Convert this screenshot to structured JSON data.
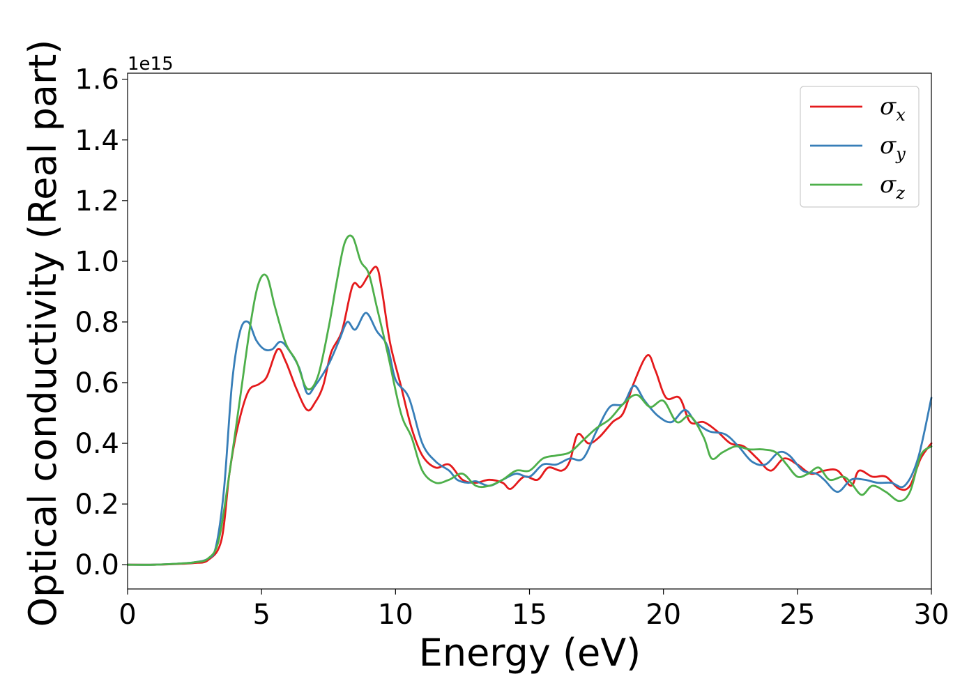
{
  "chart_data": {
    "type": "line",
    "xlabel": "Energy (eV)",
    "ylabel": "Optical conductivity (Real part)",
    "y_offset_label": "1e15",
    "xlim": [
      0,
      30
    ],
    "ylim": [
      -0.08,
      1.62
    ],
    "x_ticks": [
      0,
      5,
      10,
      15,
      20,
      25,
      30
    ],
    "x_tick_labels": [
      "0",
      "5",
      "10",
      "15",
      "20",
      "25",
      "30"
    ],
    "y_ticks": [
      0.0,
      0.2,
      0.4,
      0.6,
      0.8,
      1.0,
      1.2,
      1.4,
      1.6
    ],
    "y_tick_labels": [
      "0.0",
      "0.2",
      "0.4",
      "0.6",
      "0.8",
      "1.0",
      "1.2",
      "1.4",
      "1.6"
    ],
    "grid": false,
    "legend_position": "top-right",
    "series": [
      {
        "name": "σx",
        "legend_symbol": "σ",
        "legend_subscript": "x",
        "color": "#e41a1c",
        "points": [
          [
            0,
            0
          ],
          [
            1,
            0
          ],
          [
            2,
            0.003
          ],
          [
            2.5,
            0.006
          ],
          [
            3,
            0.015
          ],
          [
            3.5,
            0.08
          ],
          [
            3.8,
            0.3
          ],
          [
            4.1,
            0.45
          ],
          [
            4.5,
            0.57
          ],
          [
            4.9,
            0.595
          ],
          [
            5.2,
            0.62
          ],
          [
            5.6,
            0.71
          ],
          [
            5.9,
            0.67
          ],
          [
            6.3,
            0.58
          ],
          [
            6.7,
            0.51
          ],
          [
            7.0,
            0.535
          ],
          [
            7.3,
            0.59
          ],
          [
            7.6,
            0.7
          ],
          [
            8.0,
            0.77
          ],
          [
            8.4,
            0.92
          ],
          [
            8.7,
            0.915
          ],
          [
            9.0,
            0.955
          ],
          [
            9.3,
            0.98
          ],
          [
            9.5,
            0.9
          ],
          [
            9.8,
            0.73
          ],
          [
            10.2,
            0.59
          ],
          [
            10.6,
            0.45
          ],
          [
            11.0,
            0.36
          ],
          [
            11.5,
            0.32
          ],
          [
            12.0,
            0.33
          ],
          [
            12.5,
            0.28
          ],
          [
            13.0,
            0.27
          ],
          [
            13.5,
            0.28
          ],
          [
            14.0,
            0.27
          ],
          [
            14.3,
            0.25
          ],
          [
            14.8,
            0.29
          ],
          [
            15.3,
            0.28
          ],
          [
            15.7,
            0.32
          ],
          [
            16.2,
            0.31
          ],
          [
            16.5,
            0.34
          ],
          [
            16.8,
            0.43
          ],
          [
            17.2,
            0.4
          ],
          [
            17.6,
            0.42
          ],
          [
            18.1,
            0.47
          ],
          [
            18.5,
            0.5
          ],
          [
            18.9,
            0.6
          ],
          [
            19.4,
            0.69
          ],
          [
            19.7,
            0.64
          ],
          [
            20.1,
            0.55
          ],
          [
            20.6,
            0.55
          ],
          [
            21.0,
            0.47
          ],
          [
            21.5,
            0.47
          ],
          [
            22.0,
            0.44
          ],
          [
            22.5,
            0.4
          ],
          [
            23.0,
            0.39
          ],
          [
            23.5,
            0.35
          ],
          [
            24.0,
            0.31
          ],
          [
            24.5,
            0.35
          ],
          [
            25.0,
            0.33
          ],
          [
            25.5,
            0.3
          ],
          [
            26.0,
            0.31
          ],
          [
            26.5,
            0.31
          ],
          [
            27.0,
            0.26
          ],
          [
            27.3,
            0.31
          ],
          [
            27.8,
            0.29
          ],
          [
            28.3,
            0.29
          ],
          [
            28.8,
            0.25
          ],
          [
            29.2,
            0.26
          ],
          [
            29.6,
            0.35
          ],
          [
            30.0,
            0.4
          ]
        ]
      },
      {
        "name": "σy",
        "legend_symbol": "σ",
        "legend_subscript": "y",
        "color": "#377eb8",
        "points": [
          [
            0,
            0
          ],
          [
            1,
            0
          ],
          [
            2,
            0.004
          ],
          [
            2.5,
            0.008
          ],
          [
            3,
            0.02
          ],
          [
            3.3,
            0.06
          ],
          [
            3.6,
            0.25
          ],
          [
            3.9,
            0.6
          ],
          [
            4.2,
            0.77
          ],
          [
            4.5,
            0.8
          ],
          [
            4.8,
            0.74
          ],
          [
            5.1,
            0.71
          ],
          [
            5.4,
            0.71
          ],
          [
            5.7,
            0.735
          ],
          [
            6.0,
            0.71
          ],
          [
            6.4,
            0.65
          ],
          [
            6.7,
            0.565
          ],
          [
            7.0,
            0.59
          ],
          [
            7.5,
            0.66
          ],
          [
            7.9,
            0.74
          ],
          [
            8.2,
            0.8
          ],
          [
            8.5,
            0.775
          ],
          [
            8.9,
            0.83
          ],
          [
            9.3,
            0.77
          ],
          [
            9.7,
            0.72
          ],
          [
            10.0,
            0.61
          ],
          [
            10.5,
            0.55
          ],
          [
            11.0,
            0.4
          ],
          [
            11.5,
            0.34
          ],
          [
            12.0,
            0.31
          ],
          [
            12.3,
            0.28
          ],
          [
            12.7,
            0.27
          ],
          [
            13.0,
            0.275
          ],
          [
            13.5,
            0.26
          ],
          [
            14.0,
            0.28
          ],
          [
            14.5,
            0.3
          ],
          [
            15.0,
            0.29
          ],
          [
            15.5,
            0.33
          ],
          [
            16.0,
            0.33
          ],
          [
            16.5,
            0.35
          ],
          [
            17.0,
            0.35
          ],
          [
            17.5,
            0.44
          ],
          [
            18.0,
            0.52
          ],
          [
            18.5,
            0.53
          ],
          [
            18.9,
            0.59
          ],
          [
            19.3,
            0.54
          ],
          [
            19.8,
            0.49
          ],
          [
            20.3,
            0.47
          ],
          [
            20.8,
            0.51
          ],
          [
            21.2,
            0.47
          ],
          [
            21.7,
            0.44
          ],
          [
            22.3,
            0.43
          ],
          [
            22.8,
            0.39
          ],
          [
            23.3,
            0.34
          ],
          [
            23.8,
            0.33
          ],
          [
            24.3,
            0.37
          ],
          [
            24.7,
            0.36
          ],
          [
            25.2,
            0.31
          ],
          [
            25.7,
            0.3
          ],
          [
            26.0,
            0.28
          ],
          [
            26.5,
            0.24
          ],
          [
            27.0,
            0.28
          ],
          [
            27.5,
            0.28
          ],
          [
            28.0,
            0.27
          ],
          [
            28.5,
            0.27
          ],
          [
            29.0,
            0.26
          ],
          [
            29.5,
            0.35
          ],
          [
            30.0,
            0.55
          ]
        ]
      },
      {
        "name": "σz",
        "legend_symbol": "σ",
        "legend_subscript": "z",
        "color": "#4daf4a",
        "points": [
          [
            0,
            0
          ],
          [
            1,
            0
          ],
          [
            2,
            0.004
          ],
          [
            2.5,
            0.008
          ],
          [
            3,
            0.02
          ],
          [
            3.4,
            0.08
          ],
          [
            3.8,
            0.3
          ],
          [
            4.2,
            0.55
          ],
          [
            4.6,
            0.8
          ],
          [
            4.9,
            0.93
          ],
          [
            5.2,
            0.95
          ],
          [
            5.5,
            0.85
          ],
          [
            5.9,
            0.73
          ],
          [
            6.3,
            0.67
          ],
          [
            6.7,
            0.58
          ],
          [
            7.1,
            0.62
          ],
          [
            7.5,
            0.78
          ],
          [
            7.8,
            0.93
          ],
          [
            8.1,
            1.06
          ],
          [
            8.4,
            1.08
          ],
          [
            8.7,
            1.0
          ],
          [
            9.0,
            0.96
          ],
          [
            9.3,
            0.85
          ],
          [
            9.7,
            0.7
          ],
          [
            10.2,
            0.5
          ],
          [
            10.6,
            0.42
          ],
          [
            11.0,
            0.31
          ],
          [
            11.5,
            0.27
          ],
          [
            12.0,
            0.28
          ],
          [
            12.5,
            0.3
          ],
          [
            13.0,
            0.26
          ],
          [
            13.5,
            0.26
          ],
          [
            14.0,
            0.28
          ],
          [
            14.5,
            0.31
          ],
          [
            15.0,
            0.31
          ],
          [
            15.5,
            0.35
          ],
          [
            16.0,
            0.36
          ],
          [
            16.5,
            0.37
          ],
          [
            17.0,
            0.41
          ],
          [
            17.5,
            0.45
          ],
          [
            18.0,
            0.48
          ],
          [
            18.5,
            0.53
          ],
          [
            19.0,
            0.56
          ],
          [
            19.5,
            0.52
          ],
          [
            20.0,
            0.54
          ],
          [
            20.5,
            0.47
          ],
          [
            21.0,
            0.49
          ],
          [
            21.5,
            0.42
          ],
          [
            21.8,
            0.35
          ],
          [
            22.2,
            0.37
          ],
          [
            22.7,
            0.39
          ],
          [
            23.2,
            0.38
          ],
          [
            23.7,
            0.38
          ],
          [
            24.2,
            0.37
          ],
          [
            24.6,
            0.33
          ],
          [
            25.0,
            0.29
          ],
          [
            25.4,
            0.3
          ],
          [
            25.8,
            0.32
          ],
          [
            26.2,
            0.28
          ],
          [
            26.7,
            0.29
          ],
          [
            27.0,
            0.27
          ],
          [
            27.4,
            0.23
          ],
          [
            27.8,
            0.26
          ],
          [
            28.3,
            0.24
          ],
          [
            28.8,
            0.21
          ],
          [
            29.2,
            0.24
          ],
          [
            29.6,
            0.36
          ],
          [
            30.0,
            0.39
          ]
        ]
      }
    ]
  }
}
